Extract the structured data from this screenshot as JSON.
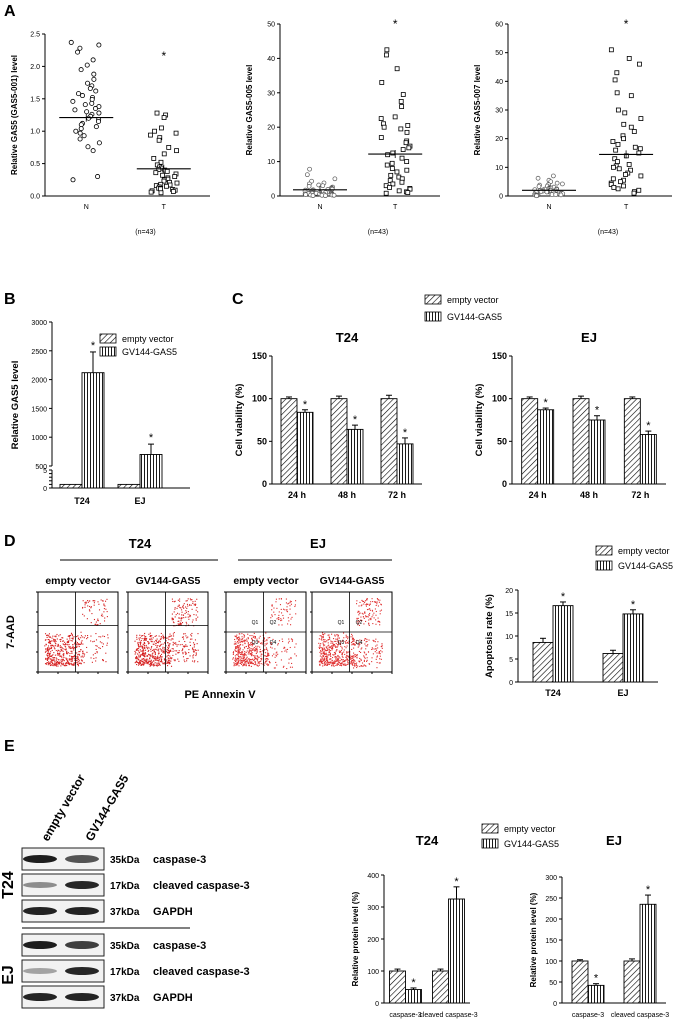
{
  "panels": {
    "A": "A",
    "B": "B",
    "C": "C",
    "D": "D",
    "E": "E"
  },
  "panelA": {
    "n_label": "(n=43)",
    "star": "*",
    "plots": [
      {
        "ylabel": "Relative GAS5 (GAS5-001) level",
        "yticks": [
          "0.0",
          "0.5",
          "1.0",
          "1.5",
          "2.0",
          "2.5"
        ],
        "ymax": 2.5,
        "groups": [
          "N",
          "T"
        ],
        "means": [
          1.21,
          0.42
        ],
        "N": [
          2.37,
          2.33,
          2.28,
          2.22,
          2.1,
          2.02,
          1.95,
          1.88,
          1.8,
          1.74,
          1.7,
          1.66,
          1.62,
          1.58,
          1.55,
          1.52,
          1.49,
          1.46,
          1.43,
          1.41,
          1.38,
          1.35,
          1.33,
          1.3,
          1.28,
          1.26,
          1.23,
          1.2,
          1.18,
          1.15,
          1.12,
          1.1,
          1.07,
          1.04,
          1.0,
          0.97,
          0.93,
          0.88,
          0.82,
          0.76,
          0.7,
          0.3,
          0.25
        ],
        "T": [
          1.28,
          1.25,
          1.21,
          1.05,
          1.0,
          0.97,
          0.94,
          0.9,
          0.86,
          0.75,
          0.7,
          0.65,
          0.58,
          0.52,
          0.48,
          0.45,
          0.43,
          0.41,
          0.4,
          0.38,
          0.36,
          0.34,
          0.32,
          0.3,
          0.28,
          0.26,
          0.25,
          0.23,
          0.21,
          0.2,
          0.18,
          0.17,
          0.16,
          0.15,
          0.14,
          0.12,
          0.11,
          0.1,
          0.09,
          0.08,
          0.07,
          0.06,
          0.05
        ]
      },
      {
        "ylabel": "Relative GAS5-005 level",
        "yticks": [
          "0",
          "10",
          "20",
          "30",
          "40",
          "50"
        ],
        "ymax": 50,
        "groups": [
          "N",
          "T"
        ],
        "means": [
          1.8,
          12.2
        ],
        "N": [
          7.8,
          6.2,
          5.0,
          4.3,
          3.8,
          3.5,
          3.2,
          3.0,
          2.8,
          2.6,
          2.4,
          2.2,
          2.1,
          2.0,
          1.9,
          1.8,
          1.7,
          1.6,
          1.5,
          1.4,
          1.3,
          1.2,
          1.1,
          1.0,
          1.0,
          0.9,
          0.9,
          0.8,
          0.8,
          0.7,
          0.7,
          0.6,
          0.6,
          0.5,
          0.5,
          0.4,
          0.4,
          0.3,
          0.3,
          0.2,
          0.2,
          0.1,
          0.1
        ],
        "T": [
          42.5,
          41,
          37,
          33,
          29.5,
          27.5,
          26,
          23,
          22.5,
          21,
          20.5,
          20,
          19.5,
          18.5,
          17,
          16,
          15.5,
          14.5,
          14,
          13.5,
          12.5,
          12,
          11,
          10,
          9.5,
          9,
          8,
          7.5,
          7,
          6,
          5.5,
          5,
          4.5,
          4,
          3.5,
          3,
          2.5,
          2.2,
          2,
          1.5,
          1.2,
          1,
          0.8
        ]
      },
      {
        "ylabel": "Relative GAS5-007 level",
        "yticks": [
          "0",
          "10",
          "20",
          "30",
          "40",
          "50",
          "60"
        ],
        "ymax": 60,
        "groups": [
          "N",
          "T"
        ],
        "means": [
          2.0,
          14.5
        ],
        "N": [
          7,
          6.2,
          5.5,
          5,
          4.5,
          4.2,
          4,
          3.8,
          3.5,
          3.3,
          3.1,
          3,
          2.8,
          2.6,
          2.5,
          2.4,
          2.3,
          2.2,
          2.1,
          2,
          1.9,
          1.8,
          1.7,
          1.6,
          1.5,
          1.4,
          1.3,
          1.2,
          1.1,
          1,
          0.9,
          0.8,
          0.8,
          0.7,
          0.6,
          0.5,
          0.5,
          0.4,
          0.3,
          0.3,
          0.2,
          0.2,
          0.1
        ],
        "T": [
          51,
          48,
          46,
          43,
          40.5,
          36,
          35,
          30,
          29,
          27,
          25,
          24,
          22.5,
          21,
          20,
          19,
          18,
          17,
          16.5,
          16,
          15,
          14,
          13,
          12,
          11,
          10.5,
          10,
          9.5,
          9,
          8,
          7.5,
          7,
          6,
          5.5,
          5,
          4.5,
          4,
          3.5,
          3,
          2.5,
          2,
          1.5,
          1
        ]
      }
    ]
  },
  "legend": {
    "empty_vector": "empty vector",
    "gv144": "GV144-GAS5"
  },
  "panelB": {
    "ylabel": "Relative GAS5 level",
    "yticks_top": [
      "500",
      "1000",
      "1500",
      "2000",
      "2500",
      "3000"
    ],
    "yticks_bottom": [
      "0",
      "1",
      "2",
      "3",
      "4",
      "5"
    ],
    "categories": [
      "T24",
      "EJ"
    ],
    "series": [
      {
        "name": "empty vector",
        "values": [
          1,
          1
        ]
      },
      {
        "name": "GV144-GAS5",
        "values": [
          2120,
          700
        ],
        "errors": [
          360,
          180
        ]
      }
    ],
    "star": "*"
  },
  "panelC": {
    "charts": [
      {
        "title": "T24",
        "ylabel": "Cell viability (%)",
        "yticks": [
          "0",
          "50",
          "100",
          "150"
        ],
        "categories": [
          "24 h",
          "48 h",
          "72 h"
        ],
        "series": [
          {
            "name": "empty vector",
            "values": [
              100,
              100,
              100
            ],
            "errors": [
              2,
              3,
              4
            ]
          },
          {
            "name": "GV144-GAS5",
            "values": [
              84,
              64,
              47
            ],
            "errors": [
              3,
              5,
              7
            ]
          }
        ]
      },
      {
        "title": "EJ",
        "ylabel": "Cell viability (%)",
        "yticks": [
          "0",
          "50",
          "100",
          "150"
        ],
        "categories": [
          "24 h",
          "48 h",
          "72 h"
        ],
        "series": [
          {
            "name": "empty vector",
            "values": [
              100,
              100,
              100
            ],
            "errors": [
              2,
              3,
              2
            ]
          },
          {
            "name": "GV144-GAS5",
            "values": [
              87,
              75,
              58
            ],
            "errors": [
              2,
              5,
              4
            ]
          }
        ]
      }
    ],
    "star": "*"
  },
  "panelD": {
    "group_t24": "T24",
    "group_ej": "EJ",
    "plot_titles": [
      "empty vector",
      "GV144-GAS5",
      "empty vector",
      "GV144-GAS5"
    ],
    "yaxis": "7-AAD",
    "xaxis": "PE Annexin V",
    "quadrants": [
      "Q1",
      "Q2",
      "Q3",
      "Q4"
    ],
    "bar": {
      "ylabel": "Apoptosis rate (%)",
      "yticks": [
        "0",
        "5",
        "10",
        "15",
        "20"
      ],
      "categories": [
        "T24",
        "EJ"
      ],
      "series": [
        {
          "name": "empty vector",
          "values": [
            8.6,
            6.2
          ],
          "errors": [
            0.9,
            0.7
          ]
        },
        {
          "name": "GV144-GAS5",
          "values": [
            16.6,
            14.8
          ],
          "errors": [
            0.8,
            0.9
          ]
        }
      ]
    },
    "star": "*"
  },
  "panelE": {
    "lanes": [
      "empty vector",
      "GV144-GAS5"
    ],
    "cells": [
      "T24",
      "EJ"
    ],
    "bands": [
      {
        "kda": "35kDa",
        "name": "caspase-3"
      },
      {
        "kda": "17kDa",
        "name": "cleaved caspase-3"
      },
      {
        "kda": "37kDa",
        "name": "GAPDH"
      }
    ],
    "charts": [
      {
        "title": "T24",
        "ylabel": "Relative protein level (%)",
        "yticks": [
          "0",
          "100",
          "200",
          "300",
          "400"
        ],
        "categories": [
          "caspase-3",
          "cleaved caspase-3"
        ],
        "series": [
          {
            "name": "empty vector",
            "values": [
              100,
              100
            ],
            "errors": [
              6,
              6
            ]
          },
          {
            "name": "GV144-GAS5",
            "values": [
              42,
              325
            ],
            "errors": [
              5,
              38
            ]
          }
        ]
      },
      {
        "title": "EJ",
        "ylabel": "Relative protein level (%)",
        "yticks": [
          "0",
          "50",
          "100",
          "150",
          "200",
          "250",
          "300"
        ],
        "categories": [
          "caspase-3",
          "cleaved caspase-3"
        ],
        "series": [
          {
            "name": "empty vector",
            "values": [
              100,
              100
            ],
            "errors": [
              3,
              5
            ]
          },
          {
            "name": "GV144-GAS5",
            "values": [
              42,
              235
            ],
            "errors": [
              4,
              22
            ]
          }
        ]
      }
    ],
    "star": "*"
  }
}
